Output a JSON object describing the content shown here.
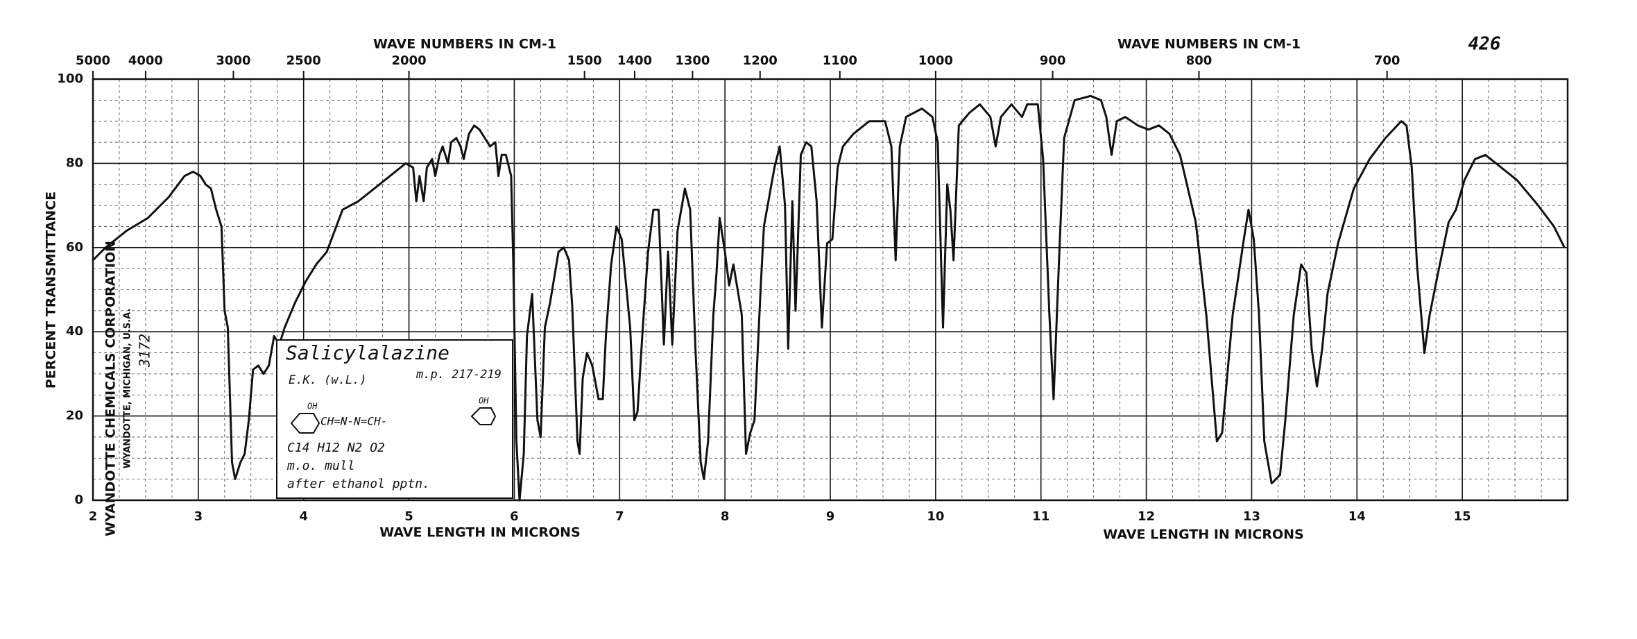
{
  "chart_data": {
    "type": "line",
    "title": "426",
    "x2label": "WAVE NUMBERS IN CM-1",
    "xlabel": "WAVE LENGTH IN MICRONS",
    "ylabel": "PERCENT TRANSMITTANCE",
    "color": "#111111",
    "grid": true,
    "xlim": [
      2,
      16
    ],
    "ylim": [
      0,
      100
    ],
    "xticks": [
      2,
      3,
      4,
      5,
      6,
      7,
      8,
      9,
      10,
      11,
      12,
      13,
      14,
      15
    ],
    "yticks": [
      0,
      20,
      40,
      60,
      80,
      100
    ],
    "x2ticks": [
      5000,
      4000,
      3000,
      2500,
      2000,
      1500,
      1400,
      1300,
      1200,
      1100,
      1000,
      900,
      800,
      700
    ],
    "annotations": [
      "Salicylalazine",
      "E.K. (w.L.)",
      "m.p. 217-219",
      "OH",
      "CH=N-N=CH-",
      "OH",
      "C14 H12 N2 O2",
      "m.o. mull",
      "after ethanol pptn."
    ],
    "side_text": [
      "WYANDOTTE CHEMICALS CORPORATION",
      "WYANDOTTE, MICHIGAN, U.S.A.",
      "3172"
    ],
    "x": [
      2.0,
      2.12,
      2.32,
      2.52,
      2.72,
      2.87,
      2.95,
      3.02,
      3.07,
      3.12,
      3.17,
      3.22,
      3.25,
      3.28,
      3.32,
      3.35,
      3.4,
      3.44,
      3.48,
      3.52,
      3.57,
      3.62,
      3.67,
      3.72,
      3.77,
      3.82,
      3.92,
      4.02,
      4.12,
      4.22,
      4.37,
      4.52,
      4.72,
      4.92,
      4.97,
      5.04,
      5.07,
      5.1,
      5.14,
      5.17,
      5.22,
      5.25,
      5.29,
      5.32,
      5.37,
      5.4,
      5.45,
      5.49,
      5.52,
      5.57,
      5.62,
      5.67,
      5.72,
      5.77,
      5.82,
      5.85,
      5.88,
      5.92,
      5.97,
      5.99,
      6.02,
      6.05,
      6.09,
      6.12,
      6.17,
      6.22,
      6.25,
      6.29,
      6.34,
      6.42,
      6.47,
      6.52,
      6.55,
      6.6,
      6.62,
      6.65,
      6.69,
      6.74,
      6.8,
      6.84,
      6.87,
      6.92,
      6.97,
      7.02,
      7.1,
      7.14,
      7.17,
      7.22,
      7.27,
      7.32,
      7.37,
      7.42,
      7.46,
      7.5,
      7.55,
      7.62,
      7.67,
      7.72,
      7.77,
      7.8,
      7.84,
      7.89,
      7.92,
      7.95,
      8.0,
      8.04,
      8.08,
      8.12,
      8.16,
      8.2,
      8.24,
      8.28,
      8.34,
      8.37,
      8.42,
      8.47,
      8.52,
      8.57,
      8.6,
      8.64,
      8.67,
      8.72,
      8.77,
      8.82,
      8.87,
      8.92,
      8.97,
      9.02,
      9.07,
      9.12,
      9.22,
      9.37,
      9.52,
      9.58,
      9.62,
      9.66,
      9.72,
      9.87,
      9.97,
      10.02,
      10.07,
      10.11,
      10.14,
      10.17,
      10.22,
      10.32,
      10.42,
      10.52,
      10.57,
      10.62,
      10.72,
      10.82,
      10.87,
      10.92,
      10.97,
      11.02,
      11.08,
      11.12,
      11.17,
      11.22,
      11.32,
      11.47,
      11.57,
      11.62,
      11.67,
      11.72,
      11.8,
      11.92,
      12.02,
      12.12,
      12.22,
      12.32,
      12.47,
      12.57,
      12.67,
      12.72,
      12.82,
      12.92,
      12.97,
      13.02,
      13.07,
      13.12,
      13.19,
      13.27,
      13.32,
      13.4,
      13.47,
      13.52,
      13.57,
      13.62,
      13.67,
      13.72,
      13.82,
      13.97,
      14.12,
      14.27,
      14.42,
      14.47,
      14.52,
      14.57,
      14.64,
      14.69,
      14.77,
      14.87,
      14.94,
      15.02,
      15.12,
      15.22,
      15.32,
      15.52,
      15.72,
      15.87,
      15.97
    ],
    "values": [
      57,
      60,
      64,
      67,
      72,
      77,
      78,
      77,
      75,
      74,
      69,
      65,
      45,
      41,
      9,
      5,
      9,
      11,
      19,
      31,
      32,
      30,
      32,
      39,
      37,
      41,
      47,
      52,
      56,
      59,
      69,
      71,
      75,
      79,
      80,
      79,
      71,
      77,
      71,
      79,
      81,
      77,
      82,
      84,
      80,
      85,
      86,
      84,
      81,
      87,
      89,
      88,
      86,
      84,
      85,
      77,
      82,
      82,
      77,
      57,
      14,
      0,
      11,
      39,
      49,
      19,
      15,
      41,
      47,
      59,
      60,
      57,
      46,
      14,
      11,
      29,
      35,
      32,
      24,
      24,
      39,
      56,
      65,
      62,
      41,
      19,
      21,
      41,
      59,
      69,
      69,
      37,
      59,
      37,
      64,
      74,
      69,
      36,
      9,
      5,
      14,
      44,
      54,
      67,
      59,
      51,
      56,
      50,
      44,
      11,
      16,
      19,
      51,
      65,
      72,
      79,
      84,
      70,
      36,
      71,
      45,
      82,
      85,
      84,
      71,
      41,
      61,
      62,
      79,
      84,
      87,
      90,
      90,
      84,
      57,
      84,
      91,
      93,
      91,
      85,
      41,
      75,
      69,
      57,
      89,
      92,
      94,
      91,
      84,
      91,
      94,
      91,
      94,
      94,
      94,
      81,
      44,
      24,
      56,
      86,
      95,
      96,
      95,
      91,
      82,
      90,
      91,
      89,
      88,
      89,
      87,
      82,
      66,
      44,
      14,
      16,
      44,
      61,
      69,
      62,
      44,
      14,
      4,
      6,
      19,
      44,
      56,
      54,
      36,
      27,
      36,
      49,
      61,
      74,
      81,
      86,
      90,
      89,
      79,
      56,
      35,
      44,
      54,
      66,
      69,
      76,
      81,
      82,
      80,
      76,
      70,
      65,
      60
    ]
  }
}
